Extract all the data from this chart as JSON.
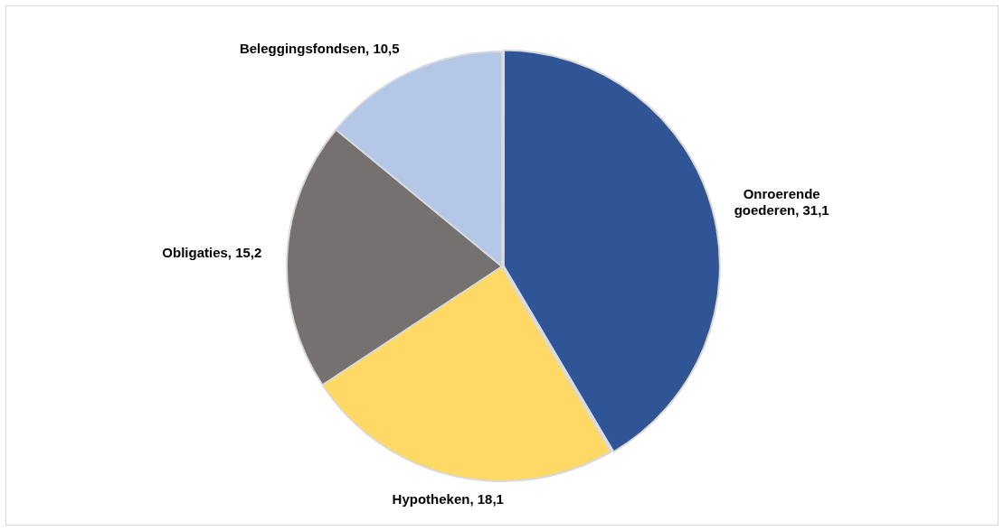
{
  "chart_data": {
    "type": "pie",
    "categories": [
      "Onroerende goederen",
      "Hypotheken",
      "Obligaties",
      "Beleggingsfondsen"
    ],
    "values": [
      31.1,
      18.1,
      15.2,
      10.5
    ],
    "value_labels": [
      "31,1",
      "18,1",
      "15,2",
      "10,5"
    ],
    "colors": [
      "#2f5597",
      "#ffd966",
      "#767171",
      "#b4c7e7"
    ],
    "legend": false
  }
}
